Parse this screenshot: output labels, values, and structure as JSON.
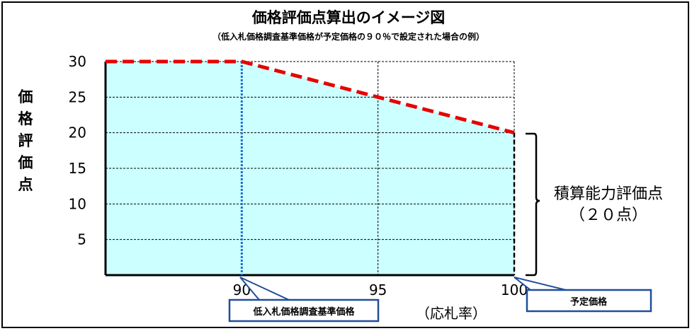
{
  "chart_data": {
    "type": "area",
    "title": "価格評価点算出のイメージ図",
    "subtitle": "（低入札価格調査基準価格が予定価格の９０％で設定された場合の例）",
    "ylabel": "価格評価点",
    "xlabel": "（応札率）",
    "x_ticks": [
      90,
      95,
      100
    ],
    "y_ticks": [
      5,
      10,
      15,
      20,
      25,
      30
    ],
    "xlim": [
      85,
      100
    ],
    "ylim": [
      0,
      30
    ],
    "grid": true,
    "series": [
      {
        "x": [
          85,
          90,
          100
        ],
        "y": [
          30,
          30,
          20
        ]
      }
    ],
    "vline_x": 90,
    "bracket_label_line1": "積算能力評価点",
    "bracket_label_line2": "（２０点）",
    "callouts": {
      "lower_limit": "低入札価格調査基準価格",
      "planned_price": "予定価格"
    },
    "colors": {
      "fill": "#ccffff",
      "line": "#e60000",
      "vline": "#1f6fd1",
      "callout_border": "#1f4e9a"
    }
  }
}
